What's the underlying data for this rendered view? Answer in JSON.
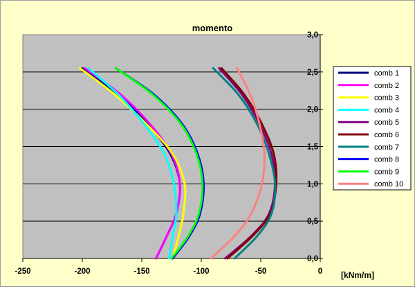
{
  "chart_data": {
    "type": "line",
    "title": "momento",
    "xlabel": "[kNm/m]",
    "ylabel": "",
    "xlim": [
      -250,
      0
    ],
    "ylim": [
      0,
      3
    ],
    "x_ticks": [
      "-250",
      "-200",
      "-150",
      "-100",
      "-50",
      "0"
    ],
    "y_ticks": [
      "0,0",
      "0,5",
      "1,0",
      "1,5",
      "2,0",
      "2,5",
      "3,0"
    ],
    "grid": "horizontal",
    "legend_position": "right",
    "plot_background": "#c0c0c0",
    "chart_background": "#ffffc9",
    "series": [
      {
        "name": "comb 1",
        "color": "#000080",
        "points": [
          [
            -200,
            2.55
          ],
          [
            -170,
            2.2
          ],
          [
            -145,
            1.8
          ],
          [
            -126,
            1.4
          ],
          [
            -118,
            1.0
          ],
          [
            -121,
            0.6
          ],
          [
            -129,
            0.3
          ],
          [
            -138,
            0.0
          ]
        ]
      },
      {
        "name": "comb 2",
        "color": "#ff00ff",
        "points": [
          [
            -198,
            2.55
          ],
          [
            -168,
            2.2
          ],
          [
            -143,
            1.8
          ],
          [
            -125,
            1.4
          ],
          [
            -118,
            1.0
          ],
          [
            -121,
            0.6
          ],
          [
            -129,
            0.3
          ],
          [
            -138,
            0.0
          ]
        ]
      },
      {
        "name": "comb 3",
        "color": "#ffff00",
        "points": [
          [
            -202,
            2.55
          ],
          [
            -173,
            2.2
          ],
          [
            -146,
            1.8
          ],
          [
            -124,
            1.4
          ],
          [
            -114,
            1.0
          ],
          [
            -115,
            0.6
          ],
          [
            -119,
            0.3
          ],
          [
            -124,
            0.0
          ]
        ]
      },
      {
        "name": "comb 4",
        "color": "#00ffff",
        "points": [
          [
            -195,
            2.55
          ],
          [
            -170,
            2.2
          ],
          [
            -148,
            1.8
          ],
          [
            -131,
            1.4
          ],
          [
            -123,
            1.0
          ],
          [
            -121,
            0.6
          ],
          [
            -124,
            0.3
          ],
          [
            -127,
            0.0
          ]
        ]
      },
      {
        "name": "comb 5",
        "color": "#800080",
        "points": [
          [
            -85,
            2.55
          ],
          [
            -66,
            2.2
          ],
          [
            -51,
            1.8
          ],
          [
            -41,
            1.4
          ],
          [
            -38,
            1.0
          ],
          [
            -43,
            0.6
          ],
          [
            -58,
            0.3
          ],
          [
            -80,
            0.0
          ]
        ]
      },
      {
        "name": "comb 6",
        "color": "#800000",
        "points": [
          [
            -83,
            2.55
          ],
          [
            -64,
            2.2
          ],
          [
            -49,
            1.8
          ],
          [
            -39,
            1.4
          ],
          [
            -37,
            1.0
          ],
          [
            -42,
            0.6
          ],
          [
            -57,
            0.3
          ],
          [
            -78,
            0.0
          ]
        ]
      },
      {
        "name": "comb 7",
        "color": "#008080",
        "points": [
          [
            -90,
            2.55
          ],
          [
            -69,
            2.2
          ],
          [
            -53,
            1.8
          ],
          [
            -43,
            1.4
          ],
          [
            -38,
            1.0
          ],
          [
            -41,
            0.6
          ],
          [
            -53,
            0.3
          ],
          [
            -72,
            0.0
          ]
        ]
      },
      {
        "name": "comb 8",
        "color": "#0000ff",
        "points": [
          [
            -172,
            2.55
          ],
          [
            -140,
            2.2
          ],
          [
            -116,
            1.8
          ],
          [
            -103,
            1.4
          ],
          [
            -98,
            1.0
          ],
          [
            -101,
            0.6
          ],
          [
            -110,
            0.3
          ],
          [
            -124,
            0.0
          ]
        ]
      },
      {
        "name": "comb 9",
        "color": "#00ff00",
        "points": [
          [
            -172,
            2.55
          ],
          [
            -141,
            2.2
          ],
          [
            -117,
            1.8
          ],
          [
            -104,
            1.4
          ],
          [
            -99,
            1.0
          ],
          [
            -102,
            0.6
          ],
          [
            -111,
            0.3
          ],
          [
            -125,
            0.0
          ]
        ]
      },
      {
        "name": "comb 10",
        "color": "#ff8080",
        "points": [
          [
            -70,
            2.55
          ],
          [
            -59,
            2.2
          ],
          [
            -51,
            1.8
          ],
          [
            -47,
            1.4
          ],
          [
            -49,
            1.0
          ],
          [
            -58,
            0.6
          ],
          [
            -72,
            0.3
          ],
          [
            -92,
            0.0
          ]
        ]
      }
    ]
  }
}
